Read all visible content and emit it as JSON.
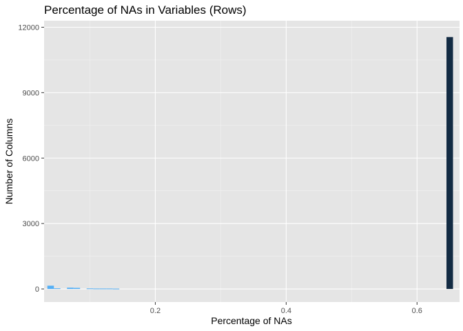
{
  "chart_data": {
    "type": "bar",
    "title": "Percentage of NAs in Variables (Rows)",
    "xlabel": "Percentage of NAs",
    "ylabel": "Number of Columns",
    "xlim": [
      0.03,
      0.665
    ],
    "ylim": [
      -600,
      12300
    ],
    "x_ticks": [
      0.2,
      0.4,
      0.6
    ],
    "x_tick_labels": [
      "0.2",
      "0.4",
      "0.6"
    ],
    "y_ticks": [
      0,
      3000,
      6000,
      9000,
      12000
    ],
    "y_tick_labels": [
      "0",
      "3000",
      "6000",
      "9000",
      "12000"
    ],
    "bin_width": 0.01,
    "grid": true,
    "legend": "none",
    "fill_scale": {
      "low": "#56b1f7",
      "high": "#132b43",
      "max_count": 11550
    },
    "bars": [
      {
        "x": 0.04,
        "count": 150
      },
      {
        "x": 0.05,
        "count": 30
      },
      {
        "x": 0.07,
        "count": 60
      },
      {
        "x": 0.08,
        "count": 50
      },
      {
        "x": 0.1,
        "count": 25
      },
      {
        "x": 0.11,
        "count": 20
      },
      {
        "x": 0.12,
        "count": 20
      },
      {
        "x": 0.13,
        "count": 20
      },
      {
        "x": 0.14,
        "count": 15
      },
      {
        "x": 0.65,
        "count": 11550
      }
    ],
    "colors": {
      "panel_background": "#e5e5e5",
      "grid_major": "#ffffff",
      "grid_minor": "#f2f2f2",
      "tick": "#333333"
    }
  }
}
